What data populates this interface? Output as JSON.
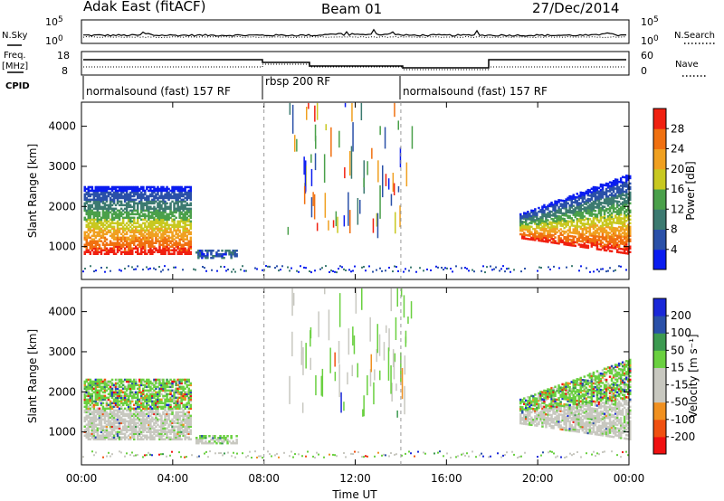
{
  "header": {
    "station": "Adak East (fitACF)",
    "beam": "Beam 01",
    "date": "27/Dec/2014"
  },
  "noise_panel": {
    "left_label": "N.Sky",
    "right_label": "N.Search",
    "left_ticks": [
      "10^5",
      "10^0"
    ],
    "right_ticks": [
      "10^5",
      "10^0"
    ]
  },
  "freq_panel": {
    "left_label_1": "Freq.",
    "left_label_2": "[MHz]",
    "right_label": "Nave",
    "left_ticks": [
      "18",
      "8"
    ],
    "right_ticks": [
      "60",
      "0"
    ]
  },
  "cpid_panel": {
    "label": "CPID",
    "modes": [
      {
        "name": "normalsound (fast) 157 RF",
        "start_hour": 0
      },
      {
        "name": "rbsp 200 RF",
        "start_hour": 8
      },
      {
        "name": "normalsound (fast) 157 RF",
        "start_hour": 14
      }
    ]
  },
  "colors": {
    "power": [
      "#0a1cf0",
      "#2a50a8",
      "#3c7a70",
      "#4aa04a",
      "#c8c820",
      "#f0a020",
      "#f07010",
      "#f02010"
    ],
    "velocity": [
      "#f01010",
      "#f05010",
      "#f09020",
      "#c8c8c0",
      "#c8c8c0",
      "#6ad040",
      "#3c9a50",
      "#2a50a8",
      "#1a28d8"
    ]
  },
  "chart_data": [
    {
      "type": "heatmap",
      "title": "",
      "xlabel": "",
      "ylabel": "Slant Range [km]",
      "x_unit": "hour UT",
      "xlim": [
        0,
        24
      ],
      "ylim": [
        180,
        4600
      ],
      "y_ticks": [
        "1000",
        "2000",
        "3000",
        "4000"
      ],
      "colorbar": {
        "label": "Power [dB]",
        "range": [
          0,
          32
        ],
        "tick_values": [
          4,
          8,
          12,
          16,
          20,
          24,
          28
        ],
        "ticks": [
          "4",
          "8",
          "12",
          "16",
          "20",
          "24",
          "28"
        ]
      },
      "echo_regions": [
        {
          "start_hour": 0.1,
          "end_hour": 4.8,
          "min_range_km": 800,
          "max_range_km": 2500,
          "peak_power_db": 30
        },
        {
          "start_hour": 5.0,
          "end_hour": 6.8,
          "min_range_km": 700,
          "max_range_km": 900,
          "peak_power_db": 8
        },
        {
          "start_hour": 19.2,
          "end_hour": 24.0,
          "min_range_km": 800,
          "max_range_km": 2800,
          "peak_power_db": 30
        }
      ]
    },
    {
      "type": "heatmap",
      "title": "",
      "xlabel": "Time UT",
      "ylabel": "Slant Range [km]",
      "x_unit": "hour UT",
      "xlim": [
        0,
        24
      ],
      "ylim": [
        180,
        4600
      ],
      "y_ticks": [
        "1000",
        "2000",
        "3000",
        "4000"
      ],
      "x_ticks": [
        "00:00",
        "04:00",
        "08:00",
        "12:00",
        "16:00",
        "20:00",
        "00:00"
      ],
      "colorbar": {
        "label": "Velocity [m s⁻¹]",
        "tick_values": [
          -200,
          -100,
          -50,
          -15,
          15,
          50,
          100,
          200
        ],
        "ticks": [
          "-200",
          "-100",
          "-50",
          "-15",
          "15",
          "50",
          "100",
          "200"
        ]
      },
      "echo_regions": [
        {
          "start_hour": 0.1,
          "end_hour": 4.8,
          "min_range_km": 800,
          "max_range_km": 2300,
          "typical_velocity": 0
        },
        {
          "start_hour": 5.0,
          "end_hour": 6.8,
          "min_range_km": 700,
          "max_range_km": 900,
          "typical_velocity": 30
        },
        {
          "start_hour": 19.2,
          "end_hour": 24.0,
          "min_range_km": 800,
          "max_range_km": 2800,
          "typical_velocity": 0
        }
      ]
    }
  ]
}
